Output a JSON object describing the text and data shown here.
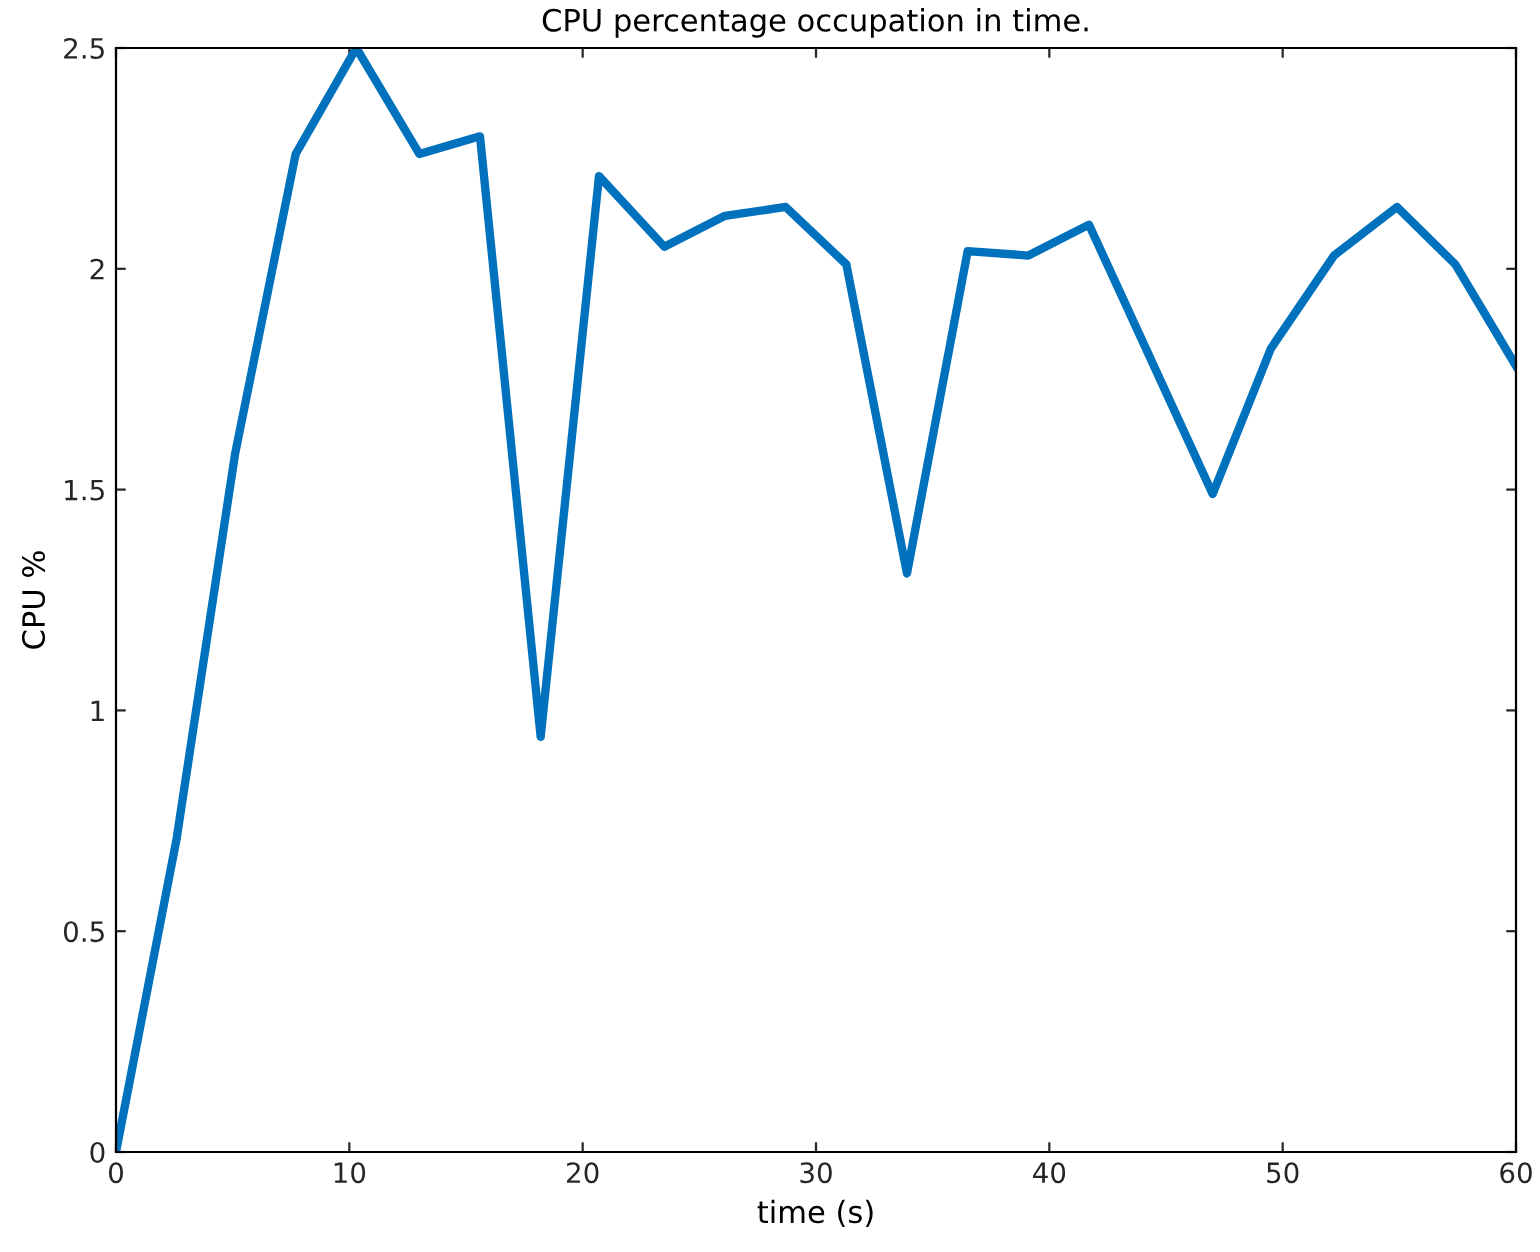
{
  "chart_data": {
    "type": "line",
    "title": "CPU percentage occupation in time.",
    "xlabel": "time (s)",
    "ylabel": "CPU %",
    "x": [
      0,
      2.6,
      5.1,
      7.7,
      10.3,
      13.0,
      15.6,
      18.2,
      20.7,
      23.5,
      26.1,
      28.7,
      31.3,
      33.9,
      36.5,
      39.1,
      41.7,
      47.0,
      49.5,
      52.2,
      54.9,
      57.4,
      60
    ],
    "series": [
      {
        "color": "#0072bd",
        "values": [
          0,
          0.71,
          1.58,
          2.26,
          2.5,
          2.26,
          2.3,
          0.94,
          2.21,
          2.05,
          2.12,
          2.14,
          2.01,
          1.31,
          2.04,
          2.03,
          2.1,
          1.49,
          1.82,
          2.03,
          2.14,
          2.01,
          1.78
        ]
      }
    ],
    "xlim": [
      0,
      60
    ],
    "xticks": [
      0,
      10,
      20,
      30,
      40,
      50,
      60
    ],
    "ylim": [
      0,
      2.5
    ],
    "yticks": [
      0,
      0.5,
      1,
      1.5,
      2,
      2.5
    ],
    "grid": false,
    "legend": false,
    "marker": "none",
    "line_style": "solid"
  }
}
